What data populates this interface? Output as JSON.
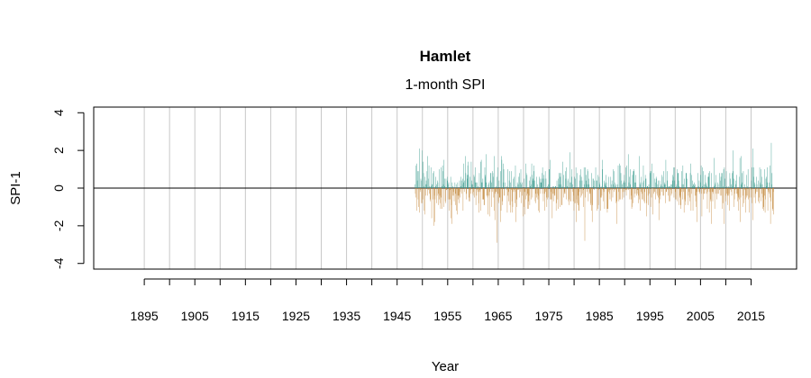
{
  "chart_data": {
    "type": "bar",
    "title": "Hamlet",
    "subtitle": "1-month SPI",
    "xlabel": "Year",
    "ylabel": "SPI-1",
    "xlim": [
      1885,
      2024
    ],
    "ylim": [
      -4.3,
      4.3
    ],
    "x_ticks": [
      1895,
      1900,
      1905,
      1910,
      1915,
      1920,
      1925,
      1930,
      1935,
      1940,
      1945,
      1950,
      1955,
      1960,
      1965,
      1970,
      1975,
      1980,
      1985,
      1990,
      1995,
      2000,
      2005,
      2010,
      2015
    ],
    "x_tick_labels": [
      "1895",
      "1905",
      "1915",
      "1925",
      "1935",
      "1945",
      "1955",
      "1965",
      "1975",
      "1985",
      "1995",
      "2005",
      "2015"
    ],
    "y_ticks": [
      -4,
      -2,
      0,
      2,
      4
    ],
    "y_tick_labels": [
      "-4",
      "-2",
      "0",
      "2",
      "4"
    ],
    "grid": {
      "vertical": true,
      "every_years": 5
    },
    "colors": {
      "positive": "#3a9c8f",
      "negative": "#c48a3e",
      "grid": "#c8c8c8",
      "axis": "#000000"
    },
    "data_start": 1948.5,
    "data_end": 2019.5,
    "step": "monthly",
    "series_name": "SPI-1",
    "values": [
      0.2,
      -0.3,
      -0.5,
      1.2,
      1.3,
      -1.2,
      0.4,
      0.9,
      -0.6,
      -1.0,
      0.9,
      2.1,
      -1.3,
      -0.2,
      -0.1,
      0.5,
      0.4,
      -0.8,
      -0.8,
      2.0,
      -0.6,
      1.4,
      0.8,
      0.1,
      -1.2,
      -1.4,
      0.6,
      0.2,
      -0.4,
      0.4,
      0.2,
      0.9,
      1.7,
      -0.4,
      -0.1,
      0.5,
      1.2,
      -0.3,
      0.1,
      -0.7,
      -0.6,
      1.1,
      0.1,
      -1.6,
      0.2,
      0.2,
      0.8,
      -0.6,
      0.9,
      -2.0,
      -0.4,
      -1.8,
      -0.6,
      0.1,
      0.6,
      0.2,
      -0.8,
      -0.4,
      0.4,
      0.3,
      -0.3,
      -0.9,
      -0.6,
      1.0,
      -0.4,
      -0.8,
      -1.1,
      1.1,
      -0.5,
      0.1,
      -1.1,
      1.2,
      0.9,
      0.2,
      -1.0,
      1.5,
      0.5,
      0.1,
      -0.7,
      -0.8,
      0.5,
      -0.1,
      -0.1,
      0.4,
      0.6,
      -0.6,
      0.2,
      0.3,
      -1.2,
      -0.6,
      -0.1,
      -0.6,
      0.6,
      -1.6,
      -0.9,
      -1.9,
      0.3,
      -0.4,
      0.1,
      -0.2,
      -0.4,
      -0.7,
      0.0,
      0.3,
      -0.3,
      -0.9,
      0.2,
      -1.2,
      -0.4,
      -1.4,
      0.3,
      -0.6,
      -0.4,
      -0.4,
      -0.8,
      0.4,
      -0.5,
      -0.2,
      0.6,
      0.1,
      -0.3,
      0.4,
      0.2,
      0.5,
      -1.2,
      0.3,
      1.3,
      -0.2,
      0.4,
      0.0,
      1.7,
      0.8,
      -0.6,
      -0.3,
      0.7,
      0.5,
      1.2,
      1.4,
      0.7,
      -0.5,
      -0.7,
      -0.7,
      0.6,
      -0.1,
      -0.3,
      1.4,
      0.2,
      0.4,
      0.2,
      -0.3,
      -0.4,
      -0.2,
      0.7,
      -0.5,
      0.6,
      1.1,
      0.3,
      -0.9,
      0.3,
      -0.4,
      -0.1,
      0.3,
      -0.2,
      0.1,
      -0.8,
      -1.3,
      0.8,
      -0.2,
      -0.1,
      1.4,
      -1.2,
      1.5,
      0.3,
      0.3,
      -0.6,
      0.5,
      -0.6,
      -0.6,
      -0.9,
      -0.9,
      1.1,
      0.6,
      0.7,
      1.8,
      0.3,
      -0.4,
      -0.4,
      -0.5,
      -1.4,
      0.2,
      -0.4,
      0.3,
      -1.5,
      -0.2,
      0.4,
      0.8,
      0.8,
      -1.0,
      0.3,
      -0.2,
      0.9,
      0.8,
      0.6,
      -0.5,
      1.7,
      -1.2,
      -1.7,
      -0.3,
      -0.2,
      0.1,
      -0.2,
      0.6,
      -2.9,
      -0.3,
      1.1,
      -0.7,
      -0.8,
      0.4,
      -0.5,
      -0.5,
      -1.8,
      0.9,
      -1.2,
      1.7,
      1.5,
      -0.7,
      -0.9,
      1.3,
      0.3,
      1.0,
      -0.4,
      -0.4,
      0.0,
      0.3,
      0.0,
      0.0,
      -0.1,
      0.1,
      -1.3,
      1.0,
      -0.4,
      -0.7,
      -0.2,
      0.4,
      0.9,
      -0.9,
      0.3,
      -1.3,
      -0.1,
      0.9,
      -0.7,
      -1.3,
      -1.0,
      -0.2,
      0.5,
      -0.1,
      0.6,
      -0.2,
      -0.8,
      1.2,
      -1.8,
      0.1,
      -0.6,
      -1.0,
      0.3,
      -0.1,
      0.2,
      -0.1,
      0.6,
      -0.5,
      0.8,
      0.3,
      -0.2,
      1.0,
      -0.8,
      0.2,
      0.3,
      -0.4,
      0.0,
      -1.5,
      -0.2,
      -1.0,
      0.5,
      -0.2,
      -1.4,
      -0.6,
      1.3,
      0.8,
      -0.4,
      0.7,
      -1.1,
      -0.3,
      -0.7,
      -1.1,
      -0.4,
      0.4,
      -0.9,
      0.6,
      0.1,
      -0.6,
      0.2,
      1.3,
      0.7,
      -0.5,
      0.5,
      0.4,
      1.2,
      0.9,
      0.0,
      0.4,
      -0.7,
      -0.8,
      -0.3,
      0.6,
      -0.5,
      -0.3,
      0.2,
      -0.6,
      -0.4,
      -1.2,
      -1.3,
      0.6,
      0.3,
      0.5,
      -0.3,
      0.3,
      0.3,
      0.5,
      0.8,
      1.1,
      -0.3,
      -0.7,
      0.7,
      0.5,
      -1.2,
      -0.3,
      0.9,
      -0.2,
      0.5,
      -0.5,
      -1.0,
      -0.6,
      0.1,
      -0.5,
      0.2,
      0.2,
      1.0,
      1.0,
      1.5,
      -0.6,
      -0.2,
      -0.6,
      -0.6,
      0.0,
      -1.6,
      -0.3,
      0.1,
      -0.7,
      0.1,
      -0.3,
      -0.4,
      -0.4,
      0.1,
      0.1,
      -1.2,
      -0.8,
      0.4,
      0.0,
      -0.6,
      0.5,
      -1.1,
      0.2,
      0.8,
      0.8,
      -1.0,
      0.6,
      0.2,
      0.8,
      -0.9,
      -0.9,
      0.1,
      1.4,
      0.0,
      0.7,
      -0.5,
      -0.3,
      -0.2,
      -0.3,
      0.9,
      0.5,
      -0.6,
      1.1,
      0.1,
      0.0,
      0.4,
      0.5,
      -0.7,
      -0.9,
      -0.6,
      0.3,
      1.9,
      -0.7,
      -0.7,
      0.3,
      1.0,
      0.6,
      0.2,
      -0.2,
      -0.7,
      -0.4,
      -1.2,
      -0.8,
      0.6,
      0.5,
      -0.8,
      1.1,
      -1.8,
      -0.6,
      -0.8,
      0.8,
      -0.9,
      -0.4,
      -1.2,
      -1.2,
      -0.2,
      0.4,
      0.7,
      1.0,
      -0.5,
      0.6,
      -0.4,
      0.4,
      0.0,
      -0.3,
      -0.1,
      -1.0,
      1.1,
      0.2,
      -2.8,
      1.1,
      -0.5,
      0.7,
      0.4,
      0.2,
      -0.2,
      1.0,
      0.9,
      -0.7,
      0.5,
      0.2,
      -0.3,
      -0.2,
      -0.3,
      -0.9,
      -0.8,
      -1.2,
      0.8,
      -1.8,
      -0.9,
      0.5,
      0.5,
      0.1,
      -0.1,
      0.4,
      0.0,
      0.0,
      1.1,
      0.0,
      0.4,
      0.4,
      -1.2,
      0.7,
      -1.1,
      -0.9,
      -0.1,
      0.6,
      0.3,
      0.2,
      -1.2,
      -0.5,
      0.1,
      -0.5,
      -0.4,
      1.0,
      1.5,
      -0.7,
      -0.1,
      -0.2,
      0.4,
      -1.1,
      0.3,
      0.2,
      0.1,
      0.7,
      0.3,
      -1.1,
      -1.3,
      -1.1,
      -1.1,
      -0.2,
      0.6,
      -0.1,
      -0.3,
      -0.6,
      -0.1,
      0.6,
      -0.7,
      0.2,
      0.4,
      -0.1,
      -0.5,
      1.0,
      0.2,
      -0.2,
      0.9,
      0.3,
      -0.1,
      0.1,
      0.2,
      -0.8,
      -0.7,
      -1.9,
      0.2,
      0.0,
      1.2,
      -0.2,
      -0.7,
      1.3,
      -0.6,
      1.2,
      -0.6,
      0.8,
      0.4,
      0.0,
      0.2,
      -0.6,
      -0.2,
      0.3,
      -0.5,
      0.4,
      0.7,
      -0.2,
      0.3,
      -0.1,
      1.1,
      -0.4,
      1.2,
      -0.1,
      0.1,
      0.0,
      1.8,
      -0.1,
      0.3,
      0.6,
      -0.6,
      0.2,
      1.0,
      -0.6,
      -0.4,
      -1.1,
      -1.0,
      0.7,
      -0.8,
      0.9,
      0.9,
      1.0,
      -0.5,
      0.3,
      -0.3,
      0.3,
      0.7,
      -0.4,
      0.0,
      -0.3,
      -0.1,
      -0.1,
      -0.8,
      -0.4,
      -0.6,
      1.7,
      0.2,
      -1.2,
      0.3,
      -0.2,
      0.6,
      -0.6,
      -0.3,
      -0.6,
      0.3,
      1.2,
      0.4,
      -0.7,
      -0.2,
      -0.8,
      0.7,
      0.5,
      0.5,
      -1.5,
      -0.8,
      0.1,
      0.1,
      -0.4,
      -0.9,
      0.2,
      -0.3,
      0.0,
      0.9,
      0.8,
      -1.0,
      0.9,
      -0.5,
      1.3,
      0.0,
      -1.4,
      0.0,
      0.8,
      -0.3,
      -0.2,
      -0.2,
      0.5,
      0.3,
      -0.6,
      0.6,
      0.5,
      -0.3,
      -0.4,
      0.2,
      -0.5,
      0.4,
      -1.7,
      -0.8,
      0.4,
      -0.4,
      -0.6,
      0.2,
      0.1,
      -0.2,
      0.7,
      0.6,
      0.1,
      -0.4,
      0.9,
      -0.4,
      0.3,
      0.2,
      0.2,
      -0.8,
      1.5,
      -0.2,
      -0.2,
      0.9,
      0.4,
      -0.1,
      -0.4,
      0.1,
      -0.7,
      0.1,
      0.1,
      -0.7,
      -0.1,
      0.2,
      -0.4,
      0.2,
      -0.3,
      0.4,
      0.7,
      0.6,
      1.1,
      -0.5,
      1.1,
      0.4,
      -0.2,
      -0.6,
      -0.6,
      0.1,
      0.2,
      1.0,
      -0.7,
      0.8,
      0.8,
      0.4,
      -0.9,
      0.1,
      -0.5,
      -0.4,
      -0.9,
      -1.1,
      -0.2,
      0.9,
      0.2,
      -0.6,
      1.2,
      -0.2,
      0.2,
      -1.3,
      0.5,
      -0.6,
      -0.7,
      -0.9,
      0.8,
      0.8,
      0.0,
      0.5,
      0.0,
      -0.9,
      -0.4,
      -0.2,
      0.0,
      -0.5,
      -0.7,
      0.8,
      1.3,
      -1.2,
      -0.3,
      0.7,
      0.1,
      0.4,
      -1.2,
      0.2,
      0.2,
      0.3,
      0.1,
      -0.4,
      0.2,
      -0.7,
      -1.0,
      -0.4,
      -1.8,
      -0.2,
      0.8,
      0.0,
      0.1,
      -0.2,
      0.4,
      -0.3,
      -0.2,
      0.7,
      0.3,
      1.2,
      -0.3,
      -1.5,
      0.1,
      1.1,
      -0.6,
      0.9,
      -0.3,
      0.2,
      -0.3,
      0.7,
      -0.1,
      0.3,
      0.2,
      -0.3,
      0.1,
      -1.1,
      -0.2,
      0.6,
      0.6,
      0.8,
      -1.3,
      0.9,
      -0.2,
      -0.6,
      -0.7,
      0.8,
      -1.9,
      -0.2,
      -0.2,
      -0.7,
      -0.3,
      -0.2,
      1.6,
      0.1,
      -1.1,
      0.2,
      0.3,
      0.7,
      -0.3,
      0.0,
      -0.6,
      -0.3,
      0.3,
      0.2,
      -0.3,
      0.0,
      -0.1,
      0.8,
      -0.4,
      0.4,
      0.6,
      -0.4,
      0.8,
      -1.1,
      0.8,
      -0.8,
      0.1,
      1.0,
      -1.9,
      1.1,
      0.0,
      0.5,
      -0.4,
      -0.7,
      0.9,
      -0.3,
      0.1,
      -0.4,
      -0.9,
      -0.4,
      0.1,
      -0.3,
      -1.2,
      0.8,
      -0.1,
      0.5,
      0.2,
      -0.2,
      -0.4,
      0.8,
      0.1,
      0.9,
      2.0,
      0.5,
      -1.0,
      -0.6,
      -0.3,
      -0.1,
      0.2,
      0.4,
      0.7,
      -0.3,
      -0.3,
      -0.7,
      -0.4,
      -0.5,
      -1.2,
      -0.6,
      0.6,
      1.6,
      -1.8,
      -0.5,
      0.2,
      1.7,
      0.3,
      0.8,
      -1.0,
      -0.4,
      0.9,
      -0.8,
      0.0,
      0.2,
      -0.1,
      -0.6,
      -1.3,
      -0.4,
      0.7,
      -0.5,
      -0.4,
      0.1,
      1.0,
      -0.6,
      0.0,
      -1.3,
      -0.5,
      0.0,
      0.0,
      -0.1,
      -0.5,
      0.4,
      1.1,
      -0.8,
      -1.7,
      2.1,
      0.6,
      1.1,
      -0.5,
      0.3,
      0.2,
      -0.8,
      -0.3,
      -0.2,
      0.6,
      0.2,
      0.0,
      -0.2,
      -0.7,
      0.4,
      -0.8,
      -0.5,
      1.1,
      0.3,
      0.2,
      -0.7,
      1.0,
      0.6,
      -0.3,
      0.2,
      -1.1,
      -0.5,
      -1.0,
      -1.2,
      -0.4,
      1.0,
      -1.3,
      -0.6,
      0.5,
      0.1,
      0.6,
      0.3,
      1.1,
      -1.2,
      -0.1,
      -0.2,
      0.3,
      -0.3,
      1.2,
      -0.5,
      -1.9,
      -0.7,
      2.4,
      0.2,
      0.8,
      -1.2,
      -1.1,
      -0.2,
      -1.4
    ]
  }
}
